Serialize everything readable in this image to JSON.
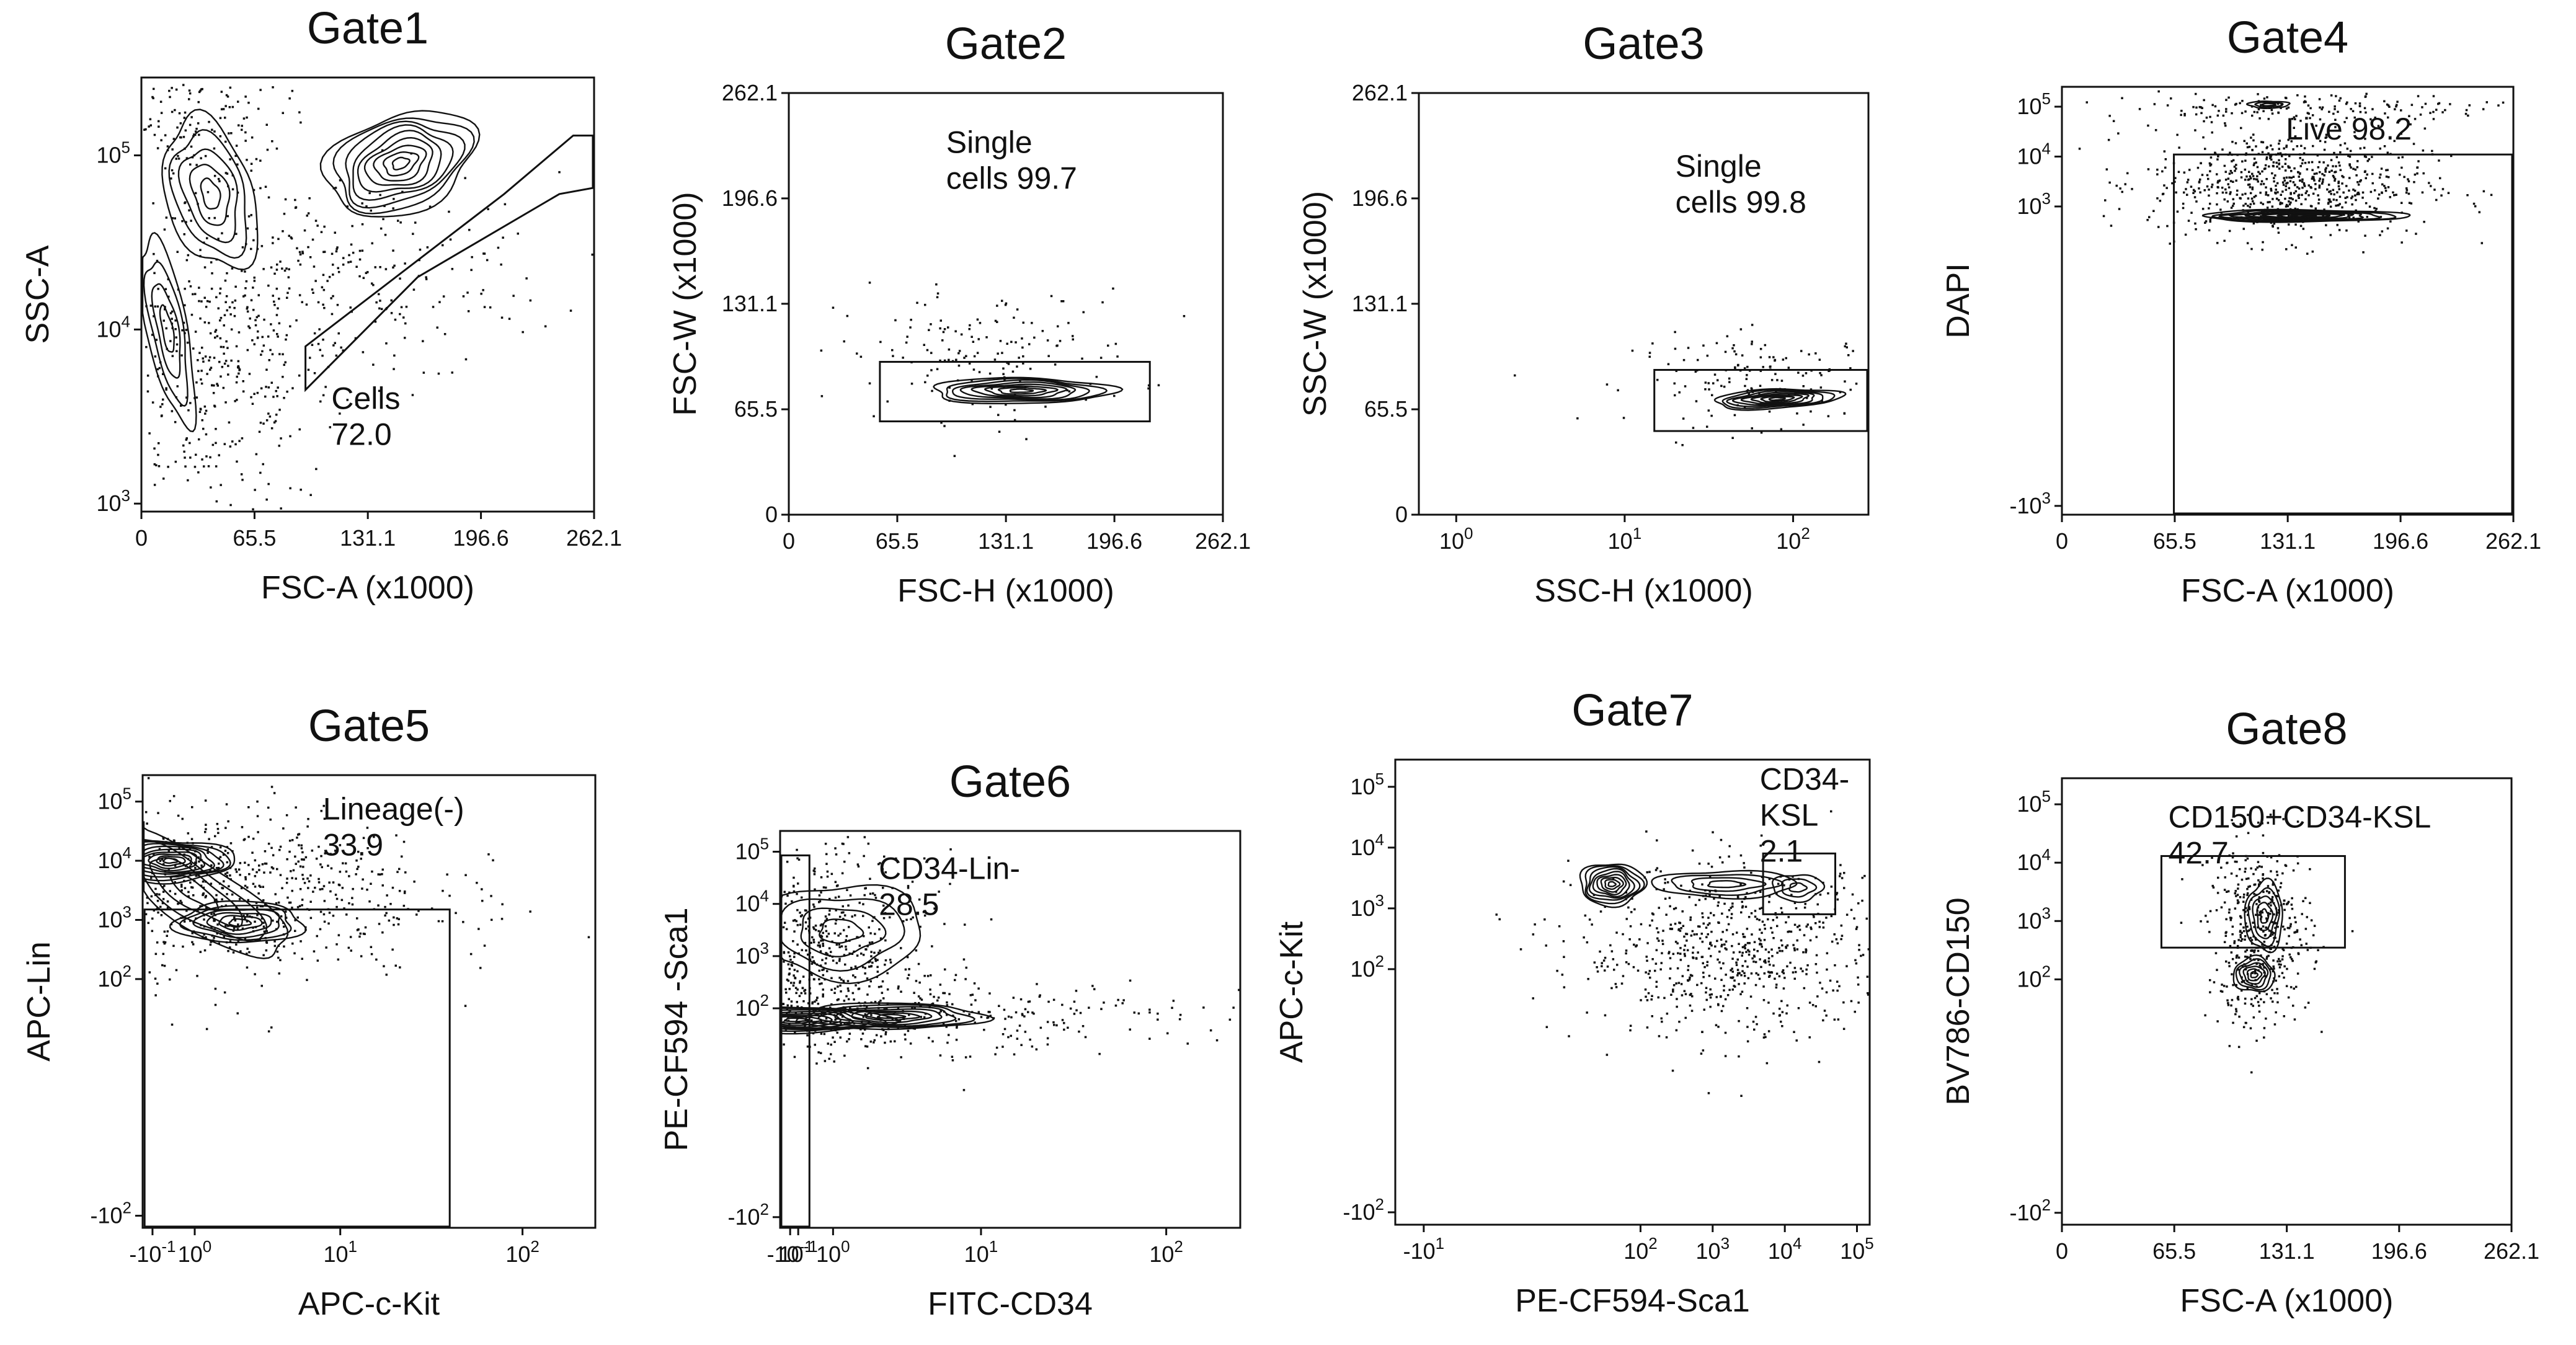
{
  "chart_data": [
    {
      "type": "flow-cytometry-contour",
      "title": "Gate1",
      "xlabel": "FSC-A (x1000)",
      "ylabel": "SSC-A",
      "xscale": "linear",
      "yscale": "log",
      "xlim": [
        0,
        262.1
      ],
      "ylim": [
        900,
        280000
      ],
      "xticks": [
        {
          "v": 0,
          "label": "0"
        },
        {
          "v": 65.5,
          "label": "65.5"
        },
        {
          "v": 131.1,
          "label": "131.1"
        },
        {
          "v": 196.6,
          "label": "196.6"
        },
        {
          "v": 262.1,
          "label": "262.1"
        }
      ],
      "yticks": [
        {
          "v": 1000,
          "label": "10",
          "exp": "3"
        },
        {
          "v": 10000,
          "label": "10",
          "exp": "4"
        },
        {
          "v": 100000,
          "label": "10",
          "exp": "5"
        }
      ],
      "gate": {
        "shape": "polygon",
        "points": [
          [
            95,
            8000
          ],
          [
            210,
            60000
          ],
          [
            250,
            130000
          ],
          [
            272,
            130000
          ],
          [
            270,
            65000
          ],
          [
            242,
            60000
          ],
          [
            160,
            20000
          ],
          [
            95,
            4500
          ]
        ]
      },
      "gate_label": [
        "Cells",
        "72.0"
      ],
      "gate_label_pos": [
        110,
        3500
      ],
      "populations": [
        {
          "cx": 150,
          "cy": 90000,
          "sx": 45,
          "sy": 0.28,
          "rot": 0.35,
          "levels": 9
        },
        {
          "cx": 40,
          "cy": 60000,
          "sx": 25,
          "sy": 0.45,
          "rot": 0.3,
          "levels": 5
        },
        {
          "cx": 15,
          "cy": 10000,
          "sx": 12,
          "sy": 0.55,
          "rot": 0.2,
          "levels": 4
        }
      ],
      "dot_regions": [
        {
          "cx": 40,
          "cy": 6000,
          "sx": 35,
          "sy": 0.45,
          "n": 420
        },
        {
          "cx": 120,
          "cy": 20000,
          "sx": 60,
          "sy": 0.3,
          "n": 260
        },
        {
          "cx": 20,
          "cy": 150000,
          "sx": 30,
          "sy": 0.2,
          "n": 180
        }
      ]
    },
    {
      "type": "flow-cytometry-contour",
      "title": "Gate2",
      "xlabel": "FSC-H (x1000)",
      "ylabel": "FSC-W (x1000)",
      "xscale": "linear",
      "yscale": "linear",
      "xlim": [
        0,
        262.1
      ],
      "ylim": [
        0,
        262.1
      ],
      "xticks": [
        {
          "v": 0,
          "label": "0"
        },
        {
          "v": 65.5,
          "label": "65.5"
        },
        {
          "v": 131.1,
          "label": "131.1"
        },
        {
          "v": 196.6,
          "label": "196.6"
        },
        {
          "v": 262.1,
          "label": "262.1"
        }
      ],
      "yticks": [
        {
          "v": 0,
          "label": "0"
        },
        {
          "v": 65.5,
          "label": "65.5"
        },
        {
          "v": 131.1,
          "label": "131.1"
        },
        {
          "v": 196.6,
          "label": "196.6"
        },
        {
          "v": 262.1,
          "label": "262.1"
        }
      ],
      "gate": {
        "shape": "rect",
        "x": [
          55,
          218
        ],
        "y": [
          58,
          95
        ]
      },
      "gate_label": [
        "Single",
        "cells 99.7"
      ],
      "gate_label_pos": [
        95,
        225
      ],
      "populations": [
        {
          "cx": 140,
          "cy": 77,
          "sx": 55,
          "sy": 8,
          "rot": 0.0,
          "levels": 8
        }
      ],
      "dot_regions": [
        {
          "cx": 120,
          "cy": 100,
          "sx": 45,
          "sy": 20,
          "n": 160
        }
      ]
    },
    {
      "type": "flow-cytometry-contour",
      "title": "Gate3",
      "xlabel": "SSC-H (x1000)",
      "ylabel": "SSC-W (x1000)",
      "xscale": "log",
      "yscale": "linear",
      "xlim": [
        0.6,
        280
      ],
      "ylim": [
        0,
        262.1
      ],
      "xticks": [
        {
          "v": 1,
          "label": "10",
          "exp": "0"
        },
        {
          "v": 10,
          "label": "10",
          "exp": "1"
        },
        {
          "v": 100,
          "label": "10",
          "exp": "2"
        }
      ],
      "yticks": [
        {
          "v": 0,
          "label": "0"
        },
        {
          "v": 65.5,
          "label": "65.5"
        },
        {
          "v": 131.1,
          "label": "131.1"
        },
        {
          "v": 196.6,
          "label": "196.6"
        },
        {
          "v": 262.1,
          "label": "262.1"
        }
      ],
      "gate": {
        "shape": "rect",
        "x": [
          15,
          280
        ],
        "y": [
          52,
          90
        ]
      },
      "gate_label": [
        "Single",
        "cells 99.8"
      ],
      "gate_label_pos": [
        20,
        210
      ],
      "populations": [
        {
          "cx": 80,
          "cy": 72,
          "sx": 0.38,
          "sy": 6,
          "rot": 0.05,
          "levels": 8
        }
      ],
      "dot_regions": [
        {
          "cx": 70,
          "cy": 85,
          "sx": 0.4,
          "sy": 14,
          "n": 160
        }
      ]
    },
    {
      "type": "flow-cytometry-contour",
      "title": "Gate4",
      "xlabel": "FSC-A (x1000)",
      "ylabel": "DAPI",
      "xscale": "linear",
      "yscale": "biexp",
      "xlim": [
        0,
        262.1
      ],
      "ylim": [
        -1500,
        250000
      ],
      "xticks": [
        {
          "v": 0,
          "label": "0"
        },
        {
          "v": 65.5,
          "label": "65.5"
        },
        {
          "v": 131.1,
          "label": "131.1"
        },
        {
          "v": 196.6,
          "label": "196.6"
        },
        {
          "v": 262.1,
          "label": "262.1"
        }
      ],
      "yticks": [
        {
          "v": -1000,
          "label": "-10",
          "exp": "3"
        },
        {
          "v": 1000,
          "label": "10",
          "exp": "3"
        },
        {
          "v": 10000,
          "label": "10",
          "exp": "4"
        },
        {
          "v": 100000,
          "label": "10",
          "exp": "5"
        }
      ],
      "gate": {
        "shape": "rect",
        "x": [
          65,
          262.1
        ],
        "y": [
          -1500,
          11000
        ]
      },
      "gate_label": [
        "Live 98.2"
      ],
      "gate_label_pos": [
        130,
        22000
      ],
      "populations": [
        {
          "cx": 140,
          "cy": 650,
          "sx": 60,
          "sy": 0.12,
          "rot": 0.0,
          "levels": 8,
          "ylog": true
        },
        {
          "cx": 120,
          "cy": 110000,
          "sx": 12,
          "sy": 0.07,
          "rot": 0.0,
          "levels": 3,
          "ylog": true
        }
      ],
      "dot_regions": [
        {
          "cx": 130,
          "cy": 3000,
          "sx": 40,
          "sy": 0.55,
          "n": 700
        },
        {
          "cx": 140,
          "cy": 100000,
          "sx": 60,
          "sy": 0.15,
          "n": 160
        }
      ]
    },
    {
      "type": "flow-cytometry-contour",
      "title": "Gate5",
      "xlabel": "APC-c-Kit",
      "ylabel": "APC-Lin",
      "xscale": "biexp",
      "yscale": "biexp",
      "xlim": [
        -0.35,
        250
      ],
      "ylim": [
        -160,
        280000
      ],
      "xticks": [
        {
          "v": -0.1,
          "label": "-10",
          "exp": "-1"
        },
        {
          "v": 1,
          "label": "10",
          "exp": "0"
        },
        {
          "v": 10,
          "label": "10",
          "exp": "1"
        },
        {
          "v": 100,
          "label": "10",
          "exp": "2"
        }
      ],
      "yticks": [
        {
          "v": -100,
          "label": "-10",
          "exp": "2"
        },
        {
          "v": 100,
          "label": "10",
          "exp": "2"
        },
        {
          "v": 1000,
          "label": "10",
          "exp": "3"
        },
        {
          "v": 10000,
          "label": "10",
          "exp": "4"
        },
        {
          "v": 100000,
          "label": "10",
          "exp": "5"
        }
      ],
      "gate": {
        "shape": "rect",
        "x": [
          -0.3,
          40
        ],
        "y": [
          -160,
          1500
        ]
      },
      "gate_label": [
        "Lineage(-)",
        "33.9"
      ],
      "gate_label_pos": [
        8,
        50000
      ],
      "populations": [
        {
          "cx": 0.35,
          "cy": 10000,
          "sx": 0.35,
          "sy": 0.35,
          "rot": 0.0,
          "levels": 9
        },
        {
          "cx": 2.5,
          "cy": 900,
          "sx": 0.35,
          "sy": 0.35,
          "rot": 0.0,
          "levels": 6
        },
        {
          "cx": 1.0,
          "cy": 3000,
          "sx": 0.6,
          "sy": 0.55,
          "rot": -0.6,
          "levels": 4
        }
      ],
      "dot_regions": [
        {
          "cx": 1.0,
          "cy": 3000,
          "sx": 0.65,
          "sy": 0.75,
          "n": 900
        }
      ]
    },
    {
      "type": "flow-cytometry-contour",
      "title": "Gate6",
      "xlabel": "FITC-CD34",
      "ylabel": "PE-CF594 -Sca1",
      "xscale": "biexp",
      "yscale": "biexp",
      "xlim": [
        -0.35,
        250
      ],
      "ylim": [
        -160,
        250000
      ],
      "xticks": [
        {
          "v": -0.1,
          "label": "-10",
          "exp": "-1"
        },
        {
          "v": 0.1,
          "label": "10",
          "exp": "-1"
        },
        {
          "v": 1,
          "label": "10",
          "exp": "0"
        },
        {
          "v": 10,
          "label": "10",
          "exp": "1"
        },
        {
          "v": 100,
          "label": "10",
          "exp": "2"
        }
      ],
      "yticks": [
        {
          "v": -100,
          "label": "-10",
          "exp": "2"
        },
        {
          "v": 100,
          "label": "10",
          "exp": "2"
        },
        {
          "v": 1000,
          "label": "10",
          "exp": "3"
        },
        {
          "v": 10000,
          "label": "10",
          "exp": "4"
        },
        {
          "v": 100000,
          "label": "10",
          "exp": "5"
        }
      ],
      "gate": {
        "shape": "rect",
        "x": [
          -0.35,
          0.38
        ],
        "y": [
          -160,
          85000
        ]
      },
      "gate_label": [
        "CD34-Lin-",
        "28.5"
      ],
      "gate_label_pos": [
        2.5,
        30000
      ],
      "populations": [
        {
          "cx": 0.05,
          "cy": 60,
          "sx": 0.5,
          "sy": 0.25,
          "rot": 0.0,
          "levels": 8
        },
        {
          "cx": 3.0,
          "cy": 70,
          "sx": 0.5,
          "sy": 0.25,
          "rot": 0.0,
          "levels": 7
        },
        {
          "cx": 1.2,
          "cy": 3000,
          "sx": 0.45,
          "sy": 0.9,
          "rot": 0.0,
          "levels": 4
        }
      ],
      "dot_regions": [
        {
          "cx": 0.05,
          "cy": 1500,
          "sx": 0.35,
          "sy": 0.9,
          "n": 700
        },
        {
          "cx": 1.0,
          "cy": 80,
          "sx": 0.9,
          "sy": 0.35,
          "n": 500
        }
      ]
    },
    {
      "type": "flow-cytometry-contour",
      "title": "Gate7",
      "xlabel": "PE-CF594-Sca1",
      "ylabel": "APC-c-Kit",
      "xscale": "biexp",
      "yscale": "biexp",
      "xlim": [
        -25,
        150000
      ],
      "ylim": [
        -160,
        280000
      ],
      "xticks": [
        {
          "v": -10,
          "label": "-10",
          "exp": "1"
        },
        {
          "v": 100,
          "label": "10",
          "exp": "2"
        },
        {
          "v": 1000,
          "label": "10",
          "exp": "3"
        },
        {
          "v": 10000,
          "label": "10",
          "exp": "4"
        },
        {
          "v": 100000,
          "label": "10",
          "exp": "5"
        }
      ],
      "yticks": [
        {
          "v": -100,
          "label": "-10",
          "exp": "2"
        },
        {
          "v": 100,
          "label": "10",
          "exp": "2"
        },
        {
          "v": 1000,
          "label": "10",
          "exp": "3"
        },
        {
          "v": 10000,
          "label": "10",
          "exp": "4"
        },
        {
          "v": 100000,
          "label": "10",
          "exp": "5"
        }
      ],
      "gate": {
        "shape": "rect",
        "x": [
          5000,
          50000
        ],
        "y": [
          800,
          8000
        ]
      },
      "gate_label": [
        "CD34-",
        "KSL",
        "2.1"
      ],
      "gate_label_pos": [
        4500,
        90000
      ],
      "populations": [
        {
          "cx": 40,
          "cy": 2500,
          "sx": 0.45,
          "sy": 0.35,
          "rot": 0.0,
          "levels": 9
        },
        {
          "cx": 1500,
          "cy": 2500,
          "sx": 1.0,
          "sy": 0.22,
          "rot": 0.0,
          "levels": 4
        },
        {
          "cx": 15000,
          "cy": 2200,
          "sx": 0.35,
          "sy": 0.22,
          "rot": 0.0,
          "levels": 3
        }
      ],
      "dot_regions": [
        {
          "cx": 2000,
          "cy": 200,
          "sx": 1.1,
          "sy": 0.7,
          "n": 700
        }
      ]
    },
    {
      "type": "flow-cytometry-contour",
      "title": "Gate8",
      "xlabel": "FSC-A (x1000)",
      "ylabel": "BV786-CD150",
      "xscale": "linear",
      "yscale": "biexp",
      "xlim": [
        0,
        262.1
      ],
      "ylim": [
        -160,
        280000
      ],
      "xticks": [
        {
          "v": 0,
          "label": "0"
        },
        {
          "v": 65.5,
          "label": "65.5"
        },
        {
          "v": 131.1,
          "label": "131.1"
        },
        {
          "v": 196.6,
          "label": "196.6"
        },
        {
          "v": 262.1,
          "label": "262.1"
        }
      ],
      "yticks": [
        {
          "v": -100,
          "label": "-10",
          "exp": "2"
        },
        {
          "v": 100,
          "label": "10",
          "exp": "2"
        },
        {
          "v": 1000,
          "label": "10",
          "exp": "3"
        },
        {
          "v": 10000,
          "label": "10",
          "exp": "4"
        },
        {
          "v": 100000,
          "label": "10",
          "exp": "5"
        }
      ],
      "gate": {
        "shape": "rect",
        "x": [
          58,
          165
        ],
        "y": [
          350,
          13000
        ]
      },
      "gate_label": [
        "CD150+CD34-KSL",
        "42.7"
      ],
      "gate_label_pos": [
        62,
        40000
      ],
      "populations": [
        {
          "cx": 112,
          "cy": 120,
          "sx": 12,
          "sy": 0.3,
          "rot": 0.0,
          "levels": 6
        },
        {
          "cx": 118,
          "cy": 1200,
          "sx": 11,
          "sy": 0.6,
          "rot": 0.0,
          "levels": 5
        }
      ],
      "dot_regions": [
        {
          "cx": 115,
          "cy": 600,
          "sx": 15,
          "sy": 0.8,
          "n": 450
        }
      ]
    }
  ]
}
